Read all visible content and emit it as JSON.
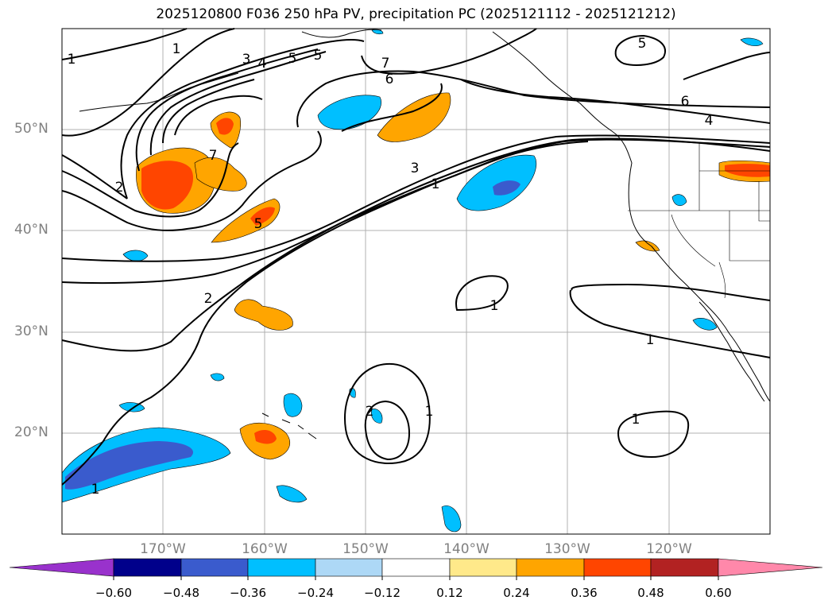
{
  "title": "2025120800 F036 250 hPa PV, precipitation PC (2025121112 - 2025121212)",
  "map": {
    "extent": {
      "lon_min": -180,
      "lon_max": -110,
      "lat_min": 10,
      "lat_max": 60
    },
    "lat_labels": [
      "50°N",
      "40°N",
      "30°N",
      "20°N"
    ],
    "lon_labels": [
      "170°W",
      "160°W",
      "150°W",
      "140°W",
      "130°W",
      "120°W"
    ],
    "gridlines": true,
    "contour_field": "250 hPa PV",
    "contour_labels": [
      "1",
      "1",
      "3",
      "4",
      "5",
      "5",
      "7",
      "6",
      "5",
      "6",
      "4",
      "7",
      "2",
      "5",
      "3",
      "1",
      "2",
      "1",
      "1",
      "1",
      "1",
      "2",
      "1"
    ],
    "shaded_field": "precipitation PC"
  },
  "colorbar": {
    "ticks": [
      "−0.60",
      "−0.48",
      "−0.36",
      "−0.24",
      "−0.12",
      "0.12",
      "0.24",
      "0.36",
      "0.48",
      "0.60"
    ],
    "colors": [
      "#9932cc",
      "#00008b",
      "#3a5bcd",
      "#00bfff",
      "#add8f6",
      "#ffffff",
      "#ffe98a",
      "#ffa500",
      "#ff4500",
      "#b22222",
      "#ff88aa"
    ],
    "extend": "both"
  }
}
